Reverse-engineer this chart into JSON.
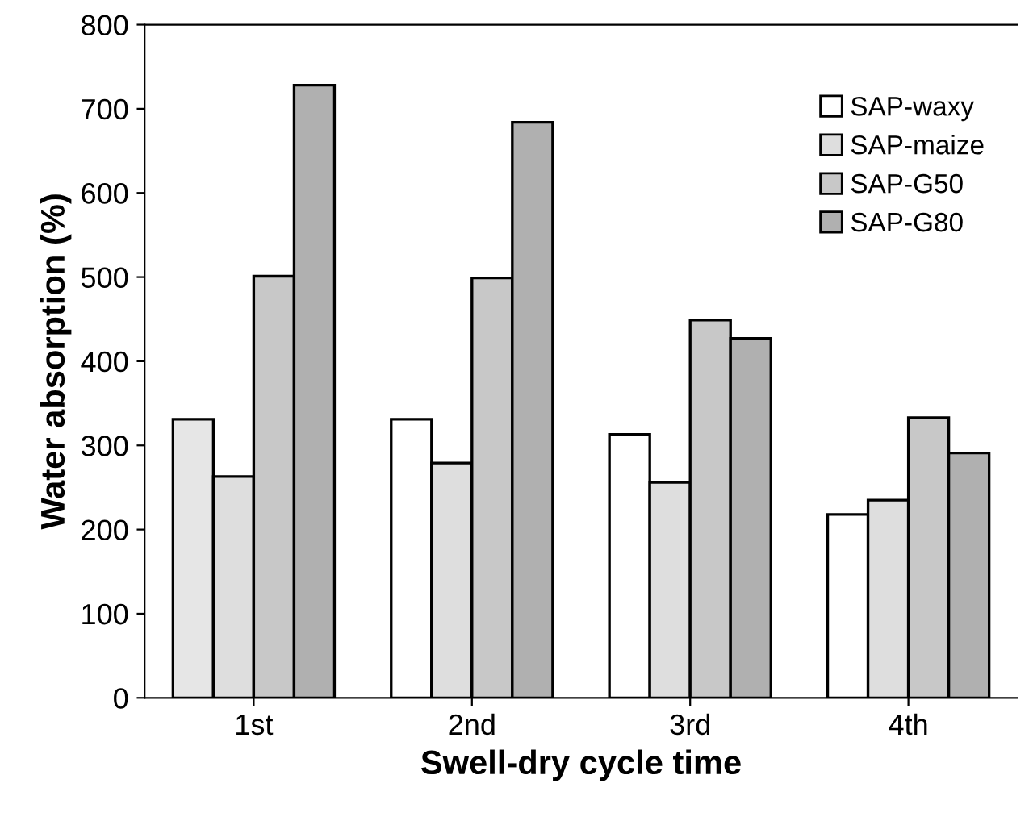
{
  "chart_data": {
    "type": "bar",
    "xlabel": "Swell-dry cycle time",
    "ylabel": "Water absorption (%)",
    "categories": [
      "1st",
      "2nd",
      "3rd",
      "4th"
    ],
    "series": [
      {
        "name": "SAP-waxy",
        "colors": [
          "#e6e6e6",
          "#ffffff",
          "#ffffff",
          "#ffffff"
        ],
        "values": [
          331,
          331,
          313,
          218
        ]
      },
      {
        "name": "SAP-maize",
        "color": "#dedede",
        "values": [
          263,
          279,
          256,
          235
        ]
      },
      {
        "name": "SAP-G50",
        "color": "#c8c8c8",
        "values": [
          501,
          499,
          449,
          333
        ]
      },
      {
        "name": "SAP-G80",
        "color": "#b0b0b0",
        "values": [
          728,
          684,
          427,
          291
        ]
      }
    ],
    "ylim": [
      0,
      800
    ],
    "yticks": [
      0,
      100,
      200,
      300,
      400,
      500,
      600,
      700,
      800
    ],
    "grid": false,
    "legend": "top right"
  }
}
